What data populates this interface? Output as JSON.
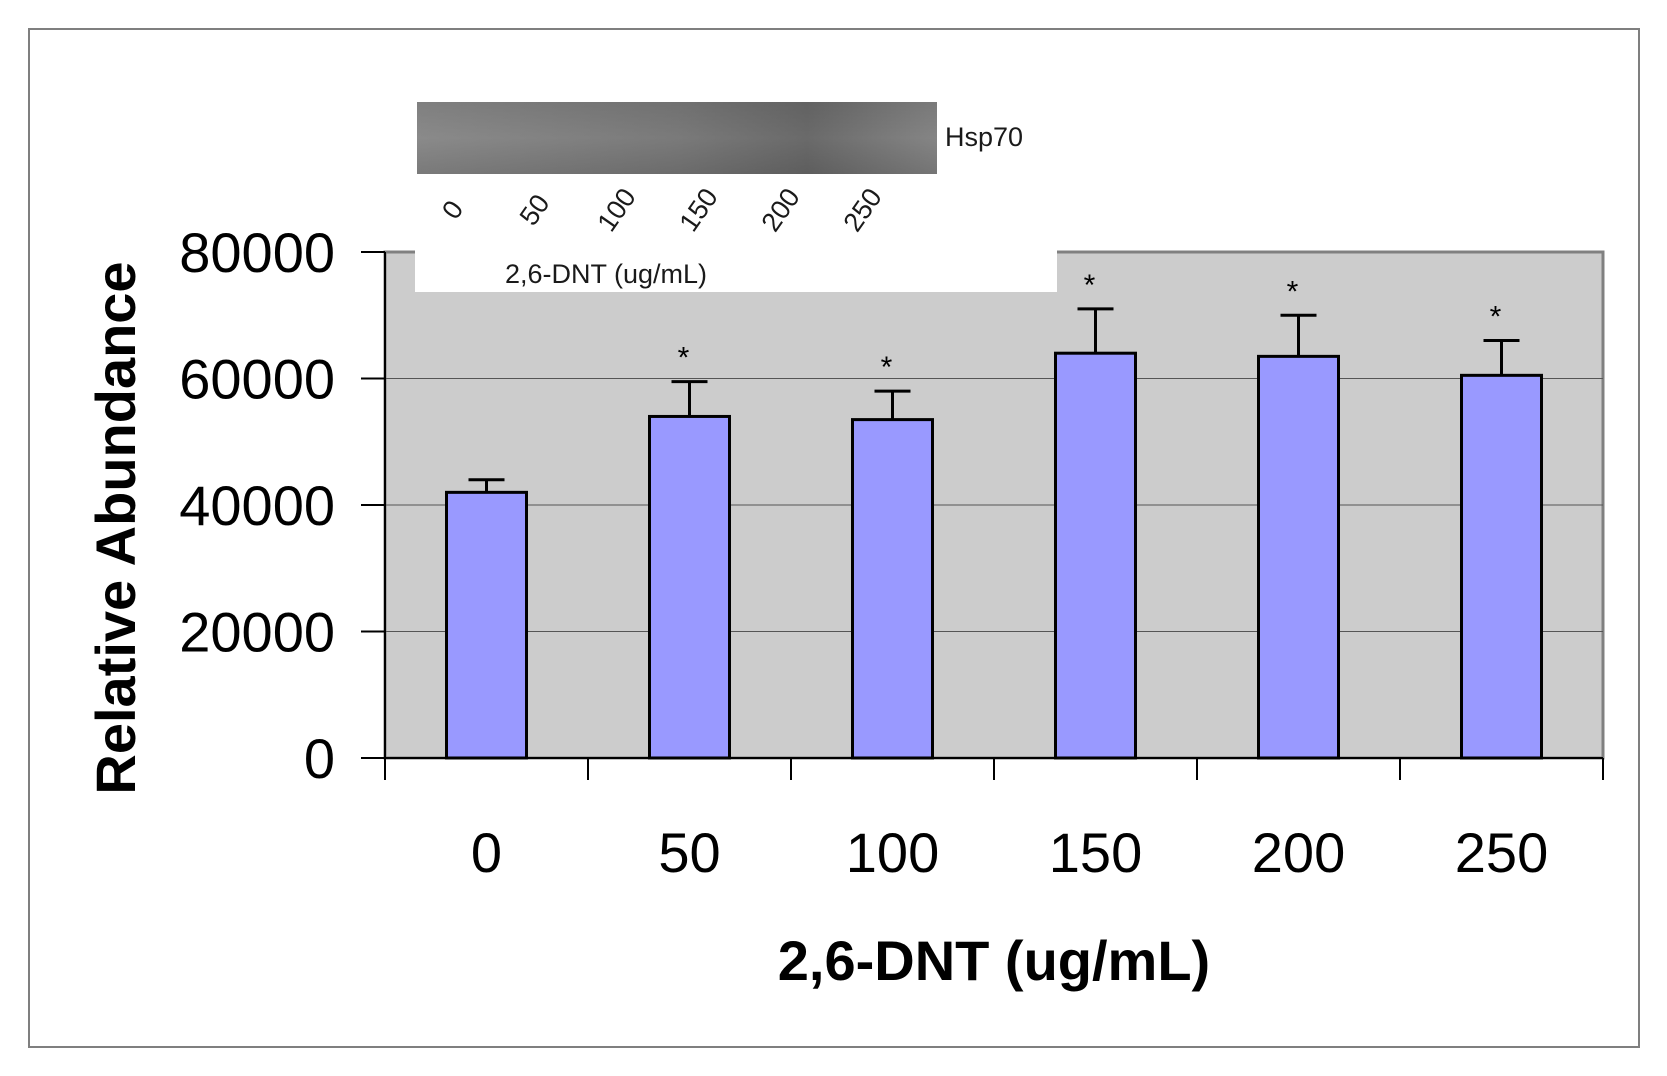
{
  "chart_data": {
    "type": "bar",
    "title": "",
    "xlabel": "2,6-DNT (ug/mL)",
    "ylabel": "Relative Abundance",
    "categories": [
      "0",
      "50",
      "100",
      "150",
      "200",
      "250"
    ],
    "values": [
      42000,
      54000,
      53500,
      64000,
      63500,
      60500
    ],
    "errors": [
      2000,
      5500,
      4500,
      7000,
      6500,
      5500
    ],
    "significance": [
      "",
      "*",
      "*",
      "*",
      "*",
      "*"
    ],
    "ylim": [
      0,
      80000
    ],
    "yticks": [
      "0",
      "20000",
      "40000",
      "60000",
      "80000"
    ],
    "grid": true,
    "legend": "none",
    "colors": {
      "bar_fill": "#9999ff",
      "bar_stroke": "#000000",
      "plot_background": "#cccccc",
      "grid": "#555555"
    }
  },
  "inset": {
    "protein_label": "Hsp70",
    "lane_labels": [
      "0",
      "50",
      "100",
      "150",
      "200",
      "250"
    ],
    "axis_label": "2,6-DNT (ug/mL)"
  }
}
